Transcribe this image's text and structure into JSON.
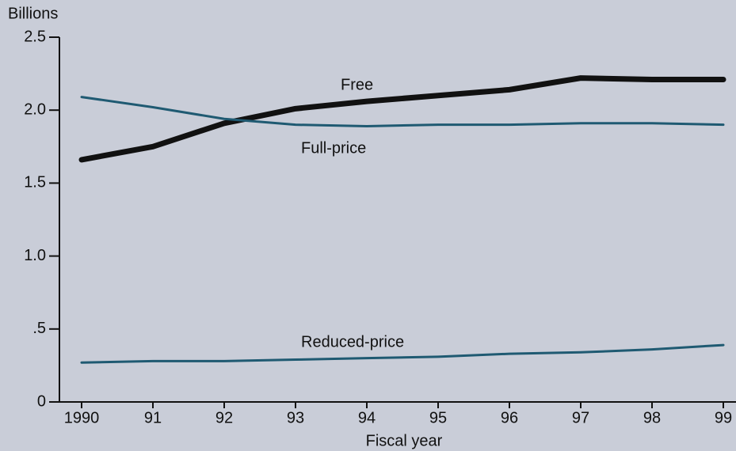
{
  "chart_data": {
    "type": "line",
    "y_label": "Billions",
    "x_label": "Fiscal year",
    "categories": [
      "1990",
      "91",
      "92",
      "93",
      "94",
      "95",
      "96",
      "97",
      "98",
      "99"
    ],
    "series": [
      {
        "name": "Free",
        "color": "#111111",
        "values": [
          1.66,
          1.75,
          1.91,
          2.01,
          2.06,
          2.1,
          2.14,
          2.22,
          2.21,
          2.21
        ]
      },
      {
        "name": "Full-price",
        "color": "#1f5a72",
        "values": [
          2.09,
          2.02,
          1.94,
          1.9,
          1.89,
          1.9,
          1.9,
          1.91,
          1.91,
          1.9
        ]
      },
      {
        "name": "Reduced-price",
        "color": "#1f5a72",
        "values": [
          0.27,
          0.28,
          0.28,
          0.29,
          0.3,
          0.31,
          0.33,
          0.34,
          0.36,
          0.39
        ]
      }
    ],
    "ylim": [
      0,
      2.5
    ],
    "yticks": [
      0,
      {
        "value": 0.5,
        "label": ".5"
      },
      {
        "value": 1.0,
        "label": "1.0"
      },
      {
        "value": 1.5,
        "label": "1.5"
      },
      {
        "value": 2.0,
        "label": "2.0"
      },
      {
        "value": 2.5,
        "label": "2.5"
      }
    ],
    "grid": false
  }
}
